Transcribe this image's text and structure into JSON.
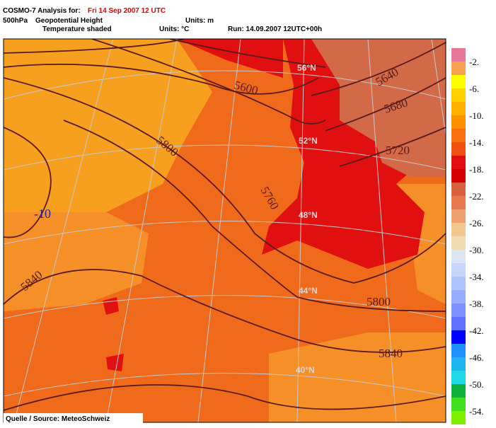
{
  "header": {
    "product": "COSMO-7 Analysis for:",
    "date": "Fri 14 Sep 2007 12 UTC",
    "level": "500hPa",
    "field1": "Geopotential Height",
    "units1": "Units: m",
    "field2": "Temperature shaded",
    "units2": "Units: °C",
    "run": "Run: 14.09.2007 12UTC+00h"
  },
  "map": {
    "contour_labels": [
      "5600",
      "5640",
      "5680",
      "5720",
      "5760",
      "5800",
      "5800",
      "5840",
      "5840"
    ],
    "temperature_label": "-10",
    "latitude_labels": [
      "56°N",
      "52°N",
      "48°N",
      "44°N",
      "40°N"
    ]
  },
  "colorbar": {
    "labels": [
      "-2.",
      "-6.",
      "-10.",
      "-14.",
      "-18.",
      "-22.",
      "-26.",
      "-30.",
      "-34.",
      "-38.",
      "-42.",
      "-46.",
      "-50.",
      "-54."
    ],
    "colors": [
      "#e8789a",
      "#f7a050",
      "#ffff00",
      "#ffd000",
      "#ffb000",
      "#ff9000",
      "#f87010",
      "#f05010",
      "#e01010",
      "#d20000",
      "#d66040",
      "#e87850",
      "#f0a070",
      "#f0c890",
      "#f0dcb0",
      "#dce6f0",
      "#c8d4f8",
      "#b0c4ff",
      "#98acff",
      "#8090ff",
      "#6070ff",
      "#0000ff",
      "#2090ff",
      "#20b4f0",
      "#20d8e8",
      "#10b040",
      "#40e020",
      "#80f000"
    ]
  },
  "source": "Quelle / Source: MeteoSchweiz"
}
